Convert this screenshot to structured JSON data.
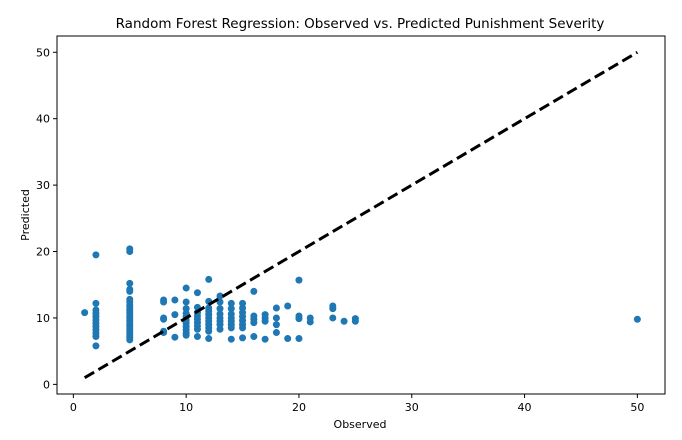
{
  "chart_data": {
    "type": "scatter",
    "title": "Random Forest Regression: Observed vs. Predicted Punishment Severity",
    "xlabel": "Observed",
    "ylabel": "Predicted",
    "xlim": [
      -1.45,
      52.45
    ],
    "ylim": [
      -1.45,
      52.45
    ],
    "xticks": [
      0,
      10,
      20,
      30,
      40,
      50
    ],
    "yticks": [
      0,
      10,
      20,
      30,
      40,
      50
    ],
    "grid": false,
    "series": [
      {
        "marker_color": "#1f77b4",
        "points": [
          [
            1,
            10.8
          ],
          [
            2,
            19.5
          ],
          [
            2,
            12.2
          ],
          [
            2,
            11.2
          ],
          [
            2,
            10.7
          ],
          [
            2,
            10.2
          ],
          [
            2,
            9.7
          ],
          [
            2,
            9.2
          ],
          [
            2,
            8.7
          ],
          [
            2,
            8.2
          ],
          [
            2,
            7.7
          ],
          [
            2,
            7.2
          ],
          [
            2,
            5.8
          ],
          [
            5,
            20.4
          ],
          [
            5,
            20.0
          ],
          [
            5,
            15.2
          ],
          [
            5,
            14.3
          ],
          [
            5,
            14.0
          ],
          [
            5,
            12.8
          ],
          [
            5,
            12.4
          ],
          [
            5,
            11.9
          ],
          [
            5,
            11.5
          ],
          [
            5,
            11.1
          ],
          [
            5,
            10.7
          ],
          [
            5,
            10.3
          ],
          [
            5,
            9.9
          ],
          [
            5,
            9.5
          ],
          [
            5,
            9.1
          ],
          [
            5,
            8.7
          ],
          [
            5,
            8.3
          ],
          [
            5,
            7.9
          ],
          [
            5,
            7.5
          ],
          [
            5,
            7.1
          ],
          [
            5,
            6.7
          ],
          [
            8,
            12.7
          ],
          [
            8,
            12.4
          ],
          [
            8,
            10.0
          ],
          [
            8,
            9.8
          ],
          [
            8,
            8.0
          ],
          [
            8,
            7.8
          ],
          [
            9,
            12.7
          ],
          [
            9,
            10.5
          ],
          [
            9,
            7.1
          ],
          [
            10,
            14.5
          ],
          [
            10,
            12.4
          ],
          [
            10,
            11.4
          ],
          [
            10,
            10.7
          ],
          [
            10,
            10.2
          ],
          [
            10,
            9.7
          ],
          [
            10,
            9.2
          ],
          [
            10,
            8.7
          ],
          [
            10,
            8.2
          ],
          [
            10,
            7.7
          ],
          [
            10,
            7.4
          ],
          [
            11,
            13.8
          ],
          [
            11,
            11.6
          ],
          [
            11,
            10.8
          ],
          [
            11,
            10.3
          ],
          [
            11,
            9.8
          ],
          [
            11,
            9.3
          ],
          [
            11,
            8.8
          ],
          [
            11,
            8.3
          ],
          [
            11,
            7.2
          ],
          [
            12,
            15.8
          ],
          [
            12,
            12.5
          ],
          [
            12,
            11.5
          ],
          [
            12,
            11.0
          ],
          [
            12,
            10.5
          ],
          [
            12,
            10.0
          ],
          [
            12,
            9.5
          ],
          [
            12,
            9.0
          ],
          [
            12,
            8.5
          ],
          [
            12,
            8.0
          ],
          [
            12,
            6.9
          ],
          [
            13,
            13.3
          ],
          [
            13,
            12.4
          ],
          [
            13,
            11.4
          ],
          [
            13,
            10.6
          ],
          [
            13,
            10.0
          ],
          [
            13,
            9.5
          ],
          [
            13,
            9.0
          ],
          [
            13,
            8.3
          ],
          [
            14,
            12.2
          ],
          [
            14,
            11.4
          ],
          [
            14,
            10.6
          ],
          [
            14,
            10.0
          ],
          [
            14,
            9.5
          ],
          [
            14,
            9.0
          ],
          [
            14,
            8.5
          ],
          [
            14,
            6.8
          ],
          [
            15,
            12.2
          ],
          [
            15,
            11.5
          ],
          [
            15,
            10.8
          ],
          [
            15,
            10.2
          ],
          [
            15,
            9.6
          ],
          [
            15,
            9.0
          ],
          [
            15,
            8.5
          ],
          [
            15,
            7.0
          ],
          [
            16,
            14.0
          ],
          [
            16,
            10.3
          ],
          [
            16,
            9.8
          ],
          [
            16,
            9.3
          ],
          [
            16,
            7.2
          ],
          [
            17,
            10.5
          ],
          [
            17,
            10.0
          ],
          [
            17,
            9.5
          ],
          [
            17,
            6.8
          ],
          [
            18,
            11.5
          ],
          [
            18,
            10.0
          ],
          [
            18,
            9.0
          ],
          [
            18,
            7.8
          ],
          [
            19,
            11.8
          ],
          [
            19,
            6.9
          ],
          [
            20,
            15.7
          ],
          [
            20,
            10.3
          ],
          [
            20,
            9.9
          ],
          [
            20,
            6.9
          ],
          [
            21,
            10.0
          ],
          [
            21,
            9.4
          ],
          [
            23,
            11.8
          ],
          [
            23,
            11.4
          ],
          [
            23,
            10.0
          ],
          [
            24,
            9.5
          ],
          [
            25,
            9.9
          ],
          [
            25,
            9.5
          ],
          [
            50,
            9.8
          ]
        ]
      }
    ],
    "reference_line": {
      "x": [
        1,
        50
      ],
      "y": [
        1,
        50
      ],
      "style": "dashed",
      "color": "#000000"
    }
  }
}
